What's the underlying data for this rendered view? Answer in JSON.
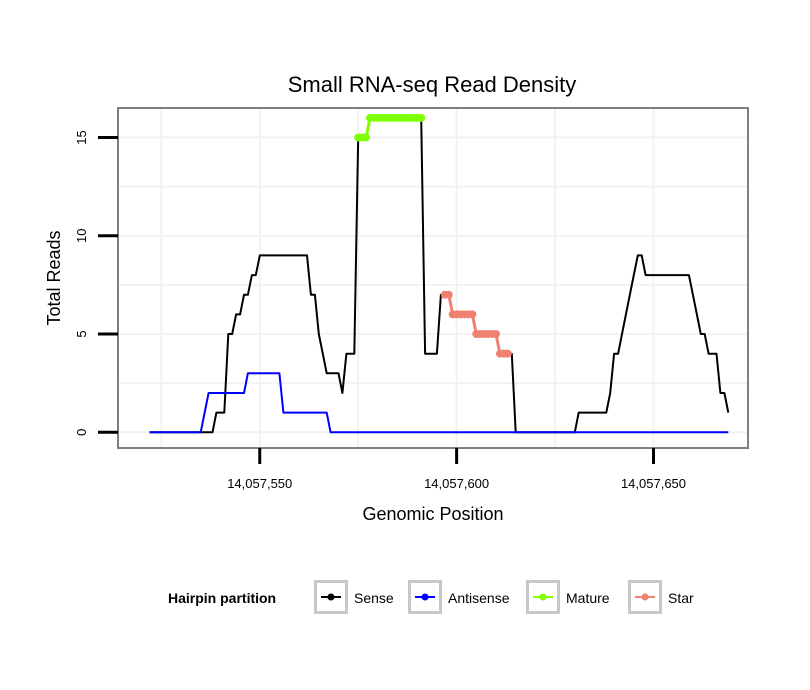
{
  "chart_data": {
    "type": "line",
    "title": "Small RNA-seq Read Density",
    "xlabel": "Genomic Position",
    "ylabel": "Total Reads",
    "xlim": [
      14057514,
      14057674
    ],
    "ylim": [
      -0.8,
      16.5
    ],
    "x_ticks": [
      14057550,
      14057600,
      14057650
    ],
    "x_tick_labels": [
      "14,057,550",
      "14,057,600",
      "14,057,650"
    ],
    "y_ticks": [
      0,
      5,
      10,
      15
    ],
    "y_tick_labels": [
      "0",
      "5",
      "10",
      "15"
    ],
    "grid": true,
    "legend": {
      "title": "Hairpin partition",
      "placement": "bottom",
      "entries": [
        "Sense",
        "Antisense",
        "Mature",
        "Star"
      ]
    },
    "series": [
      {
        "name": "Sense",
        "color": "#000000",
        "style": "line",
        "points": [
          [
            14057522,
            0
          ],
          [
            14057538,
            0
          ],
          [
            14057539,
            1
          ],
          [
            14057541,
            1
          ],
          [
            14057542,
            5
          ],
          [
            14057543,
            5
          ],
          [
            14057544,
            6
          ],
          [
            14057545,
            6
          ],
          [
            14057546,
            7
          ],
          [
            14057547,
            7
          ],
          [
            14057548,
            8
          ],
          [
            14057549,
            8
          ],
          [
            14057550,
            9
          ],
          [
            14057562,
            9
          ],
          [
            14057563,
            7
          ],
          [
            14057564,
            7
          ],
          [
            14057565,
            5
          ],
          [
            14057566,
            4
          ],
          [
            14057567,
            3
          ],
          [
            14057570,
            3
          ],
          [
            14057571,
            2
          ],
          [
            14057572,
            4
          ],
          [
            14057574,
            4
          ],
          [
            14057575,
            15
          ],
          [
            14057577,
            15
          ],
          [
            14057578,
            16
          ],
          [
            14057591,
            16
          ],
          [
            14057592,
            4
          ],
          [
            14057595,
            4
          ],
          [
            14057596,
            7
          ],
          [
            14057598,
            7
          ],
          [
            14057599,
            6
          ],
          [
            14057604,
            6
          ],
          [
            14057605,
            5
          ],
          [
            14057610,
            5
          ],
          [
            14057611,
            4
          ],
          [
            14057614,
            4
          ],
          [
            14057615,
            0
          ],
          [
            14057630,
            0
          ],
          [
            14057631,
            1
          ],
          [
            14057638,
            1
          ],
          [
            14057639,
            2
          ],
          [
            14057640,
            4
          ],
          [
            14057641,
            4
          ],
          [
            14057643,
            6
          ],
          [
            14057645,
            8
          ],
          [
            14057646,
            9
          ],
          [
            14057647,
            9
          ],
          [
            14057648,
            8
          ],
          [
            14057659,
            8
          ],
          [
            14057660,
            7
          ],
          [
            14057662,
            5
          ],
          [
            14057663,
            5
          ],
          [
            14057664,
            4
          ],
          [
            14057666,
            4
          ],
          [
            14057667,
            2
          ],
          [
            14057668,
            2
          ],
          [
            14057669,
            1
          ]
        ]
      },
      {
        "name": "Antisense",
        "color": "#0000ff",
        "style": "line",
        "points": [
          [
            14057522,
            0
          ],
          [
            14057535,
            0
          ],
          [
            14057537,
            2
          ],
          [
            14057546,
            2
          ],
          [
            14057547,
            3
          ],
          [
            14057555,
            3
          ],
          [
            14057556,
            1
          ],
          [
            14057567,
            1
          ],
          [
            14057568,
            0
          ],
          [
            14057669,
            0
          ]
        ]
      },
      {
        "name": "Mature",
        "color": "#7fff00",
        "style": "points",
        "points": [
          [
            14057575,
            15
          ],
          [
            14057576,
            15
          ],
          [
            14057577,
            15
          ],
          [
            14057578,
            16
          ],
          [
            14057579,
            16
          ],
          [
            14057580,
            16
          ],
          [
            14057581,
            16
          ],
          [
            14057582,
            16
          ],
          [
            14057583,
            16
          ],
          [
            14057584,
            16
          ],
          [
            14057585,
            16
          ],
          [
            14057586,
            16
          ],
          [
            14057587,
            16
          ],
          [
            14057588,
            16
          ],
          [
            14057589,
            16
          ],
          [
            14057590,
            16
          ],
          [
            14057591,
            16
          ]
        ]
      },
      {
        "name": "Star",
        "color": "#f08070",
        "style": "points",
        "points": [
          [
            14057597,
            7
          ],
          [
            14057598,
            7
          ],
          [
            14057599,
            6
          ],
          [
            14057600,
            6
          ],
          [
            14057601,
            6
          ],
          [
            14057602,
            6
          ],
          [
            14057603,
            6
          ],
          [
            14057604,
            6
          ],
          [
            14057605,
            5
          ],
          [
            14057606,
            5
          ],
          [
            14057607,
            5
          ],
          [
            14057608,
            5
          ],
          [
            14057609,
            5
          ],
          [
            14057610,
            5
          ],
          [
            14057611,
            4
          ],
          [
            14057612,
            4
          ],
          [
            14057613,
            4
          ]
        ]
      }
    ]
  }
}
